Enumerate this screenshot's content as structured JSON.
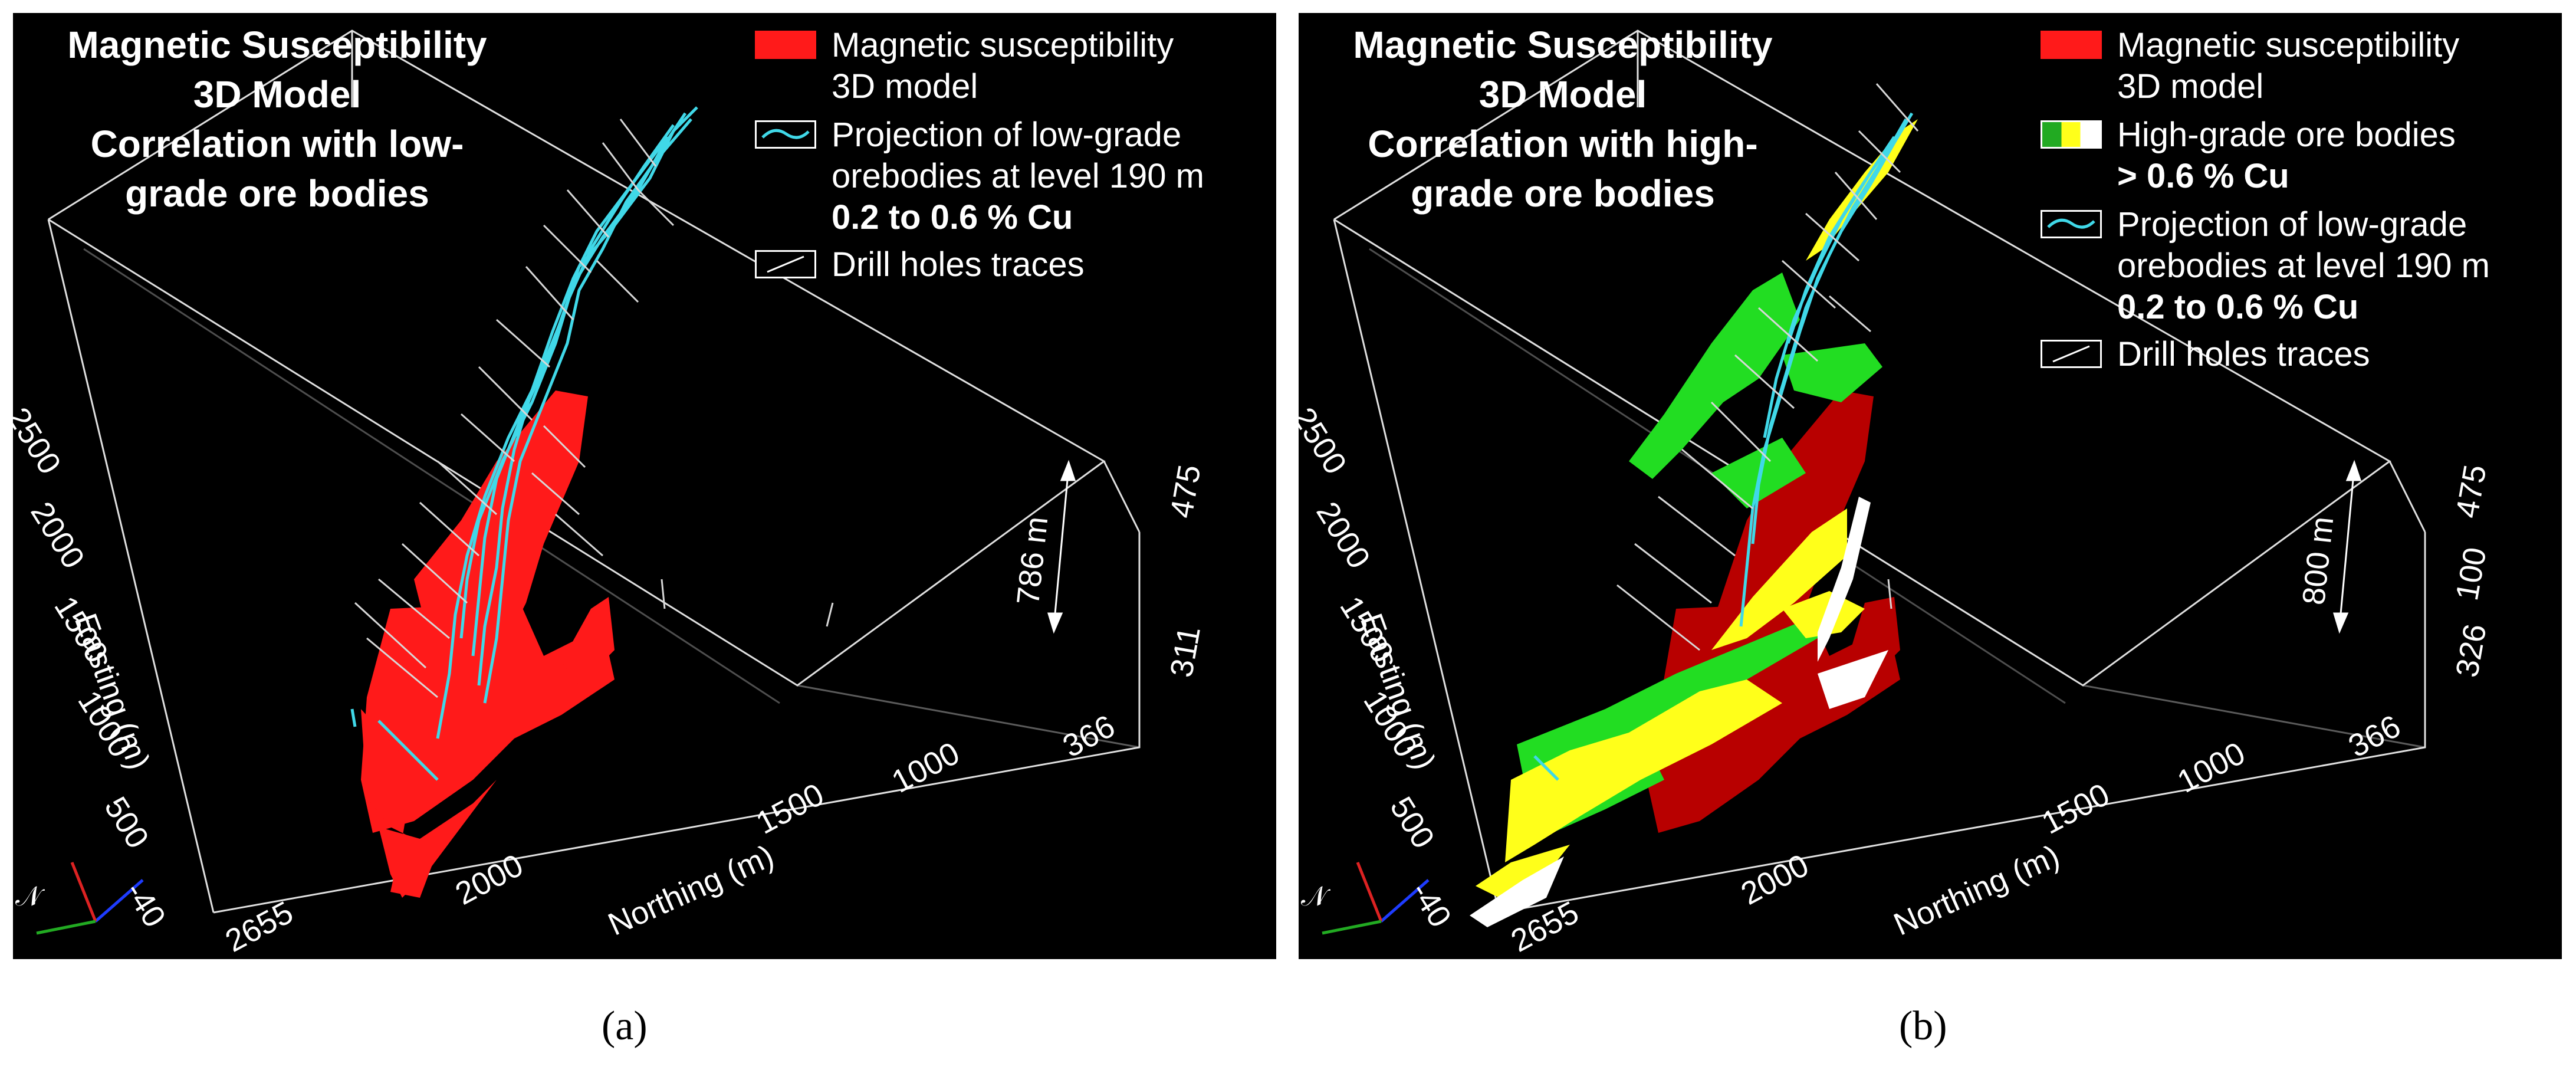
{
  "panels": [
    {
      "caption": "(a)",
      "title_lines": [
        "Magnetic Susceptibility",
        "3D Model",
        "Correlation with low-",
        "grade ore bodies"
      ],
      "legend": {
        "model": [
          "Magnetic susceptibility",
          "3D model"
        ],
        "projection": [
          "Projection of low-grade",
          "orebodies at level 190 m"
        ],
        "range": "0.2 to 0.6 % Cu",
        "drill": "Drill holes traces"
      },
      "easting_ticks": [
        "2500",
        "2000",
        "1500",
        "1000",
        "500",
        "-40"
      ],
      "northing_ticks": [
        "2655",
        "2000",
        "1500",
        "1000",
        "366"
      ],
      "vertical_ticks": [
        "475",
        "311"
      ],
      "easting_label": "Easting (m)",
      "northing_label": "Northing (m)",
      "depth_label": "786 m",
      "compass": "𝒩"
    },
    {
      "caption": "(b)",
      "title_lines": [
        "Magnetic Susceptibility",
        "3D Model",
        "Correlation with high-",
        "grade ore bodies"
      ],
      "legend": {
        "model": [
          "Magnetic susceptibility",
          "3D model"
        ],
        "high": [
          "High-grade ore bodies",
          "> 0.6 % Cu"
        ],
        "projection": [
          "Projection of low-grade",
          "orebodies at level 190 m"
        ],
        "range": "0.2 to 0.6 % Cu",
        "drill": "Drill holes traces"
      },
      "easting_ticks": [
        "2500",
        "2000",
        "1500",
        "1000",
        "500",
        "-40"
      ],
      "northing_ticks": [
        "2655",
        "2000",
        "1500",
        "1000",
        "366"
      ],
      "vertical_ticks": [
        "475",
        "100",
        "326"
      ],
      "easting_label": "Easting (m)",
      "northing_label": "Northing (m)",
      "depth_label": "800 m",
      "compass": "𝒩"
    }
  ],
  "colors": {
    "background": "#000000",
    "susceptibility": "#ff1a1a",
    "susceptibility_dark": "#a80000",
    "high_grade_green": "#22dd22",
    "high_grade_yellow": "#ffff1a",
    "high_grade_white": "#ffffff",
    "projection": "#40d8e8",
    "drill": "#d8d8d8",
    "box": "#e0e0e0"
  }
}
